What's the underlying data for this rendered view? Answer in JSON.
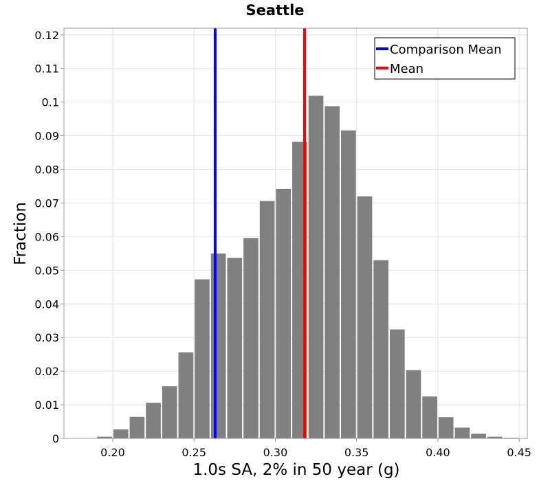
{
  "chart_data": {
    "type": "bar",
    "title": "Seattle",
    "xlabel": "1.0s SA, 2% in 50 year (g)",
    "ylabel": "Fraction",
    "xlim": [
      0.17,
      0.455
    ],
    "ylim": [
      0,
      0.122
    ],
    "grid": true,
    "legend_position": "top-right",
    "xticks": [
      "0.20",
      "0.25",
      "0.30",
      "0.35",
      "0.40",
      "0.45"
    ],
    "yticks": [
      "0",
      "0.01",
      "0.02",
      "0.03",
      "0.04",
      "0.05",
      "0.06",
      "0.07",
      "0.08",
      "0.09",
      "0.1",
      "0.11",
      "0.12"
    ],
    "bin_width": 0.01,
    "bin_centers": [
      0.195,
      0.205,
      0.215,
      0.225,
      0.235,
      0.245,
      0.255,
      0.265,
      0.275,
      0.285,
      0.295,
      0.305,
      0.315,
      0.325,
      0.335,
      0.345,
      0.355,
      0.365,
      0.375,
      0.385,
      0.395,
      0.405,
      0.415,
      0.425,
      0.435,
      0.445
    ],
    "values": [
      0.0005,
      0.0027,
      0.0064,
      0.0106,
      0.0155,
      0.0256,
      0.0473,
      0.055,
      0.0537,
      0.0596,
      0.0706,
      0.0742,
      0.0882,
      0.1019,
      0.0988,
      0.0916,
      0.072,
      0.053,
      0.0324,
      0.0203,
      0.0125,
      0.0063,
      0.0032,
      0.0014,
      0.0005,
      0.0002
    ],
    "bar_color": "#808080",
    "lines": [
      {
        "name": "Comparison Mean",
        "x": 0.263,
        "color": "#0000ff"
      },
      {
        "name": "Mean",
        "x": 0.318,
        "color": "#ff0000"
      }
    ]
  }
}
